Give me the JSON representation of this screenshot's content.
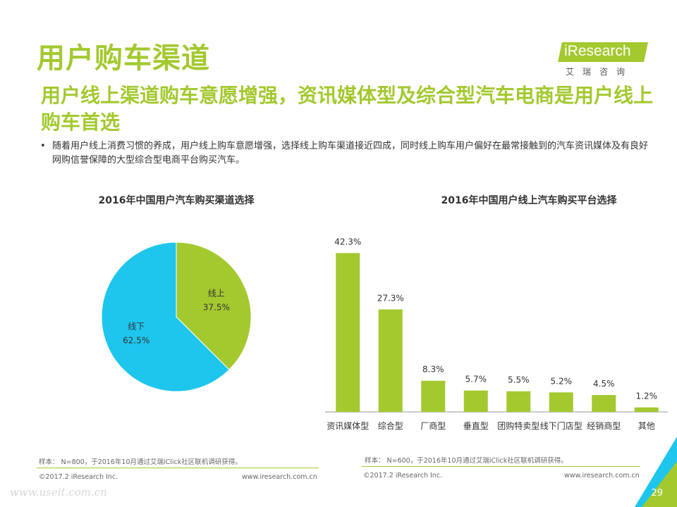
{
  "header": {
    "title": "用户购车渠道",
    "subtitle": "用户线上渠道购车意愿增强，资讯媒体型及综合型汽车电商是用户线上购车首选",
    "bullet_marker": "•",
    "bullet": "随着用户线上消费习惯的养成，用户线上购车意愿增强，选择线上购车渠道接近四成，同时线上购车用户偏好在最常接触到的汽车资讯媒体及有良好网购信誉保障的大型综合型电商平台购买汽车。"
  },
  "logo": {
    "name": "iResearch",
    "sub": "艾瑞咨询"
  },
  "colors": {
    "accent": "#a3c92f",
    "pie_offline": "#1ec6ee",
    "pie_online": "#a3c92f",
    "bar": "#a3c92f"
  },
  "chart_data": [
    {
      "type": "pie",
      "title": "2016年中国用户汽车购买渠道选择",
      "slices": [
        {
          "label": "线上",
          "value": 37.5,
          "value_label": "37.5%"
        },
        {
          "label": "线下",
          "value": 62.5,
          "value_label": "62.5%"
        }
      ]
    },
    {
      "type": "bar",
      "title": "2016年中国用户线上汽车购买平台选择",
      "categories": [
        "资讯媒体型",
        "综合型",
        "厂商型",
        "垂直型",
        "团购特卖型",
        "线下门店型",
        "经销商型",
        "其他"
      ],
      "values": [
        42.3,
        27.3,
        8.3,
        5.7,
        5.5,
        5.2,
        4.5,
        1.2
      ],
      "value_labels": [
        "42.3%",
        "27.3%",
        "8.3%",
        "5.7%",
        "5.5%",
        "5.2%",
        "4.5%",
        "1.2%"
      ],
      "ylim": [
        0,
        45
      ]
    }
  ],
  "footer": {
    "left_note": "样本： N=800，于2016年10月通过艾瑞iClick社区联机调研获得。",
    "right_note": "样本： N=600，于2016年10月通过艾瑞iClick社区联机调研获得。",
    "copyright_left": "©2017.2 iResearch Inc.",
    "site_left": "www.iresearch.com.cn",
    "copyright_right": "©2017.2 iResearch Inc.",
    "site_right": "www.iresearch.com.cn",
    "watermark": "www.useit.com.cn",
    "page": "29"
  }
}
